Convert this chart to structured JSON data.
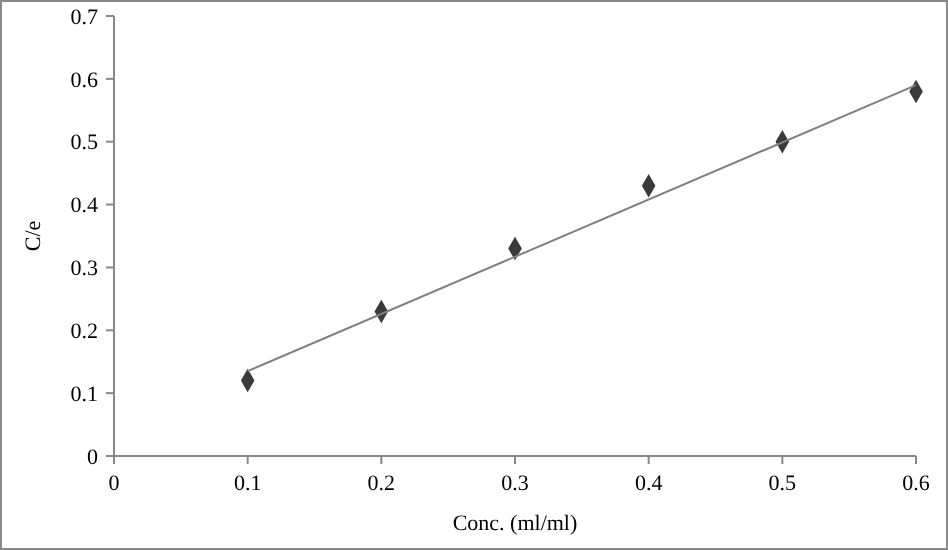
{
  "chart_data": {
    "type": "scatter",
    "xlabel": "Conc. (ml/ml)",
    "ylabel": "C/e",
    "xlim": [
      0,
      0.6
    ],
    "xticks": [
      0,
      0.1,
      0.2,
      0.3,
      0.4,
      0.5,
      0.6
    ],
    "ylim": [
      0,
      0.7
    ],
    "yticks": [
      0,
      0.1,
      0.2,
      0.3,
      0.4,
      0.5,
      0.6,
      0.7
    ],
    "x": [
      0.1,
      0.2,
      0.3,
      0.4,
      0.5,
      0.6
    ],
    "series": [
      {
        "color": "#3a3a3a",
        "marker": "diamond",
        "values": [
          0.12,
          0.23,
          0.33,
          0.43,
          0.5,
          0.58
        ]
      },
      {
        "type": "line",
        "color": "#808080",
        "x": [
          0.1,
          0.6
        ],
        "values": [
          0.135,
          0.59
        ],
        "marker": "none"
      }
    ],
    "grid": false
  }
}
